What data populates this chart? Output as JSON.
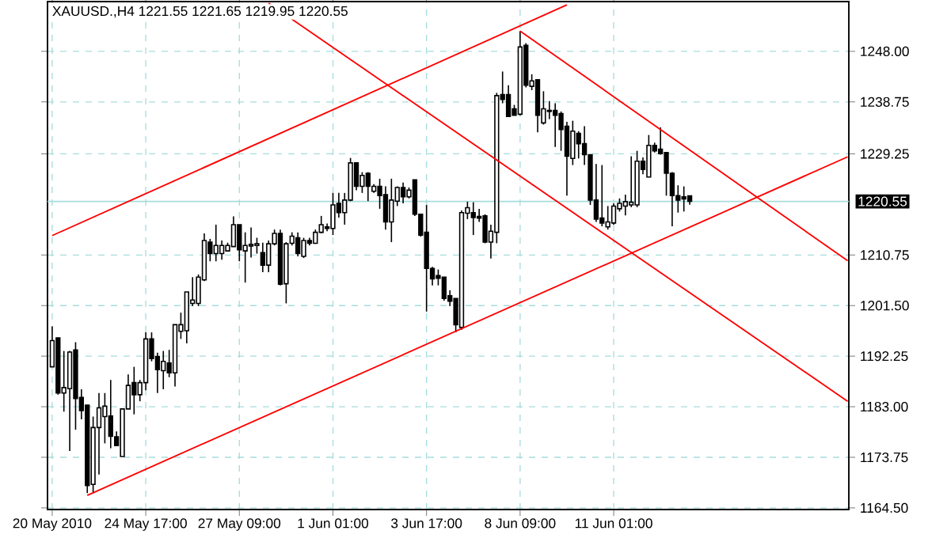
{
  "chart_data": {
    "type": "candlestick",
    "title": "XAUUSD.,H4  1221.55 1221.65 1219.95 1220.55",
    "categories": [
      "20 May 2010",
      null,
      null,
      null,
      null,
      null,
      null,
      null,
      null,
      null,
      null,
      null,
      null,
      null,
      null,
      null,
      "24 May 17:00",
      null,
      null,
      null,
      null,
      null,
      null,
      null,
      null,
      null,
      null,
      null,
      null,
      null,
      null,
      null,
      "27 May 09:00",
      null,
      null,
      null,
      null,
      null,
      null,
      null,
      null,
      null,
      null,
      null,
      null,
      null,
      null,
      null,
      "1 Jun 01:00",
      null,
      null,
      null,
      null,
      null,
      null,
      null,
      null,
      null,
      null,
      null,
      null,
      null,
      null,
      null,
      "3 Jun 17:00",
      null,
      null,
      null,
      null,
      null,
      null,
      null,
      null,
      null,
      null,
      null,
      null,
      null,
      null,
      null,
      "8 Jun 09:00",
      null,
      null,
      null,
      null,
      null,
      null,
      null,
      null,
      null,
      null,
      null,
      null,
      null,
      null,
      null,
      "11 Jun 01:00",
      null,
      null,
      null,
      null,
      null,
      null,
      null,
      null,
      null,
      null,
      null,
      null,
      null,
      null,
      null,
      null,
      null,
      null,
      null,
      null,
      null,
      null,
      null,
      null,
      null,
      null,
      null,
      null,
      null,
      null,
      null,
      null,
      null,
      null,
      null,
      null,
      null,
      null,
      null,
      null
    ],
    "ohlc": [
      [
        1190.3,
        1197.7,
        1190.3,
        1195.1
      ],
      [
        1195.6,
        1195.6,
        1185.2,
        1185.5
      ],
      [
        1185.5,
        1193.2,
        1182.1,
        1186.5
      ],
      [
        1186.3,
        1193.2,
        1174.9,
        1193.0
      ],
      [
        1193.4,
        1194.8,
        1178.8,
        1184.5
      ],
      [
        1184.7,
        1186.2,
        1180.7,
        1182.3
      ],
      [
        1183.3,
        1183.3,
        1167.2,
        1168.6
      ],
      [
        1168.8,
        1181.2,
        1167.2,
        1179.2
      ],
      [
        1179.2,
        1185.5,
        1170.6,
        1182.8
      ],
      [
        1181.2,
        1185.5,
        1176.3,
        1183.1
      ],
      [
        1181.3,
        1187.9,
        1175.4,
        1177.6
      ],
      [
        1177.5,
        1178.5,
        1175.9,
        1175.9
      ],
      [
        1173.9,
        1182.6,
        1173.9,
        1182.6
      ],
      [
        1182.6,
        1188.9,
        1182.6,
        1186.9
      ],
      [
        1187.4,
        1190.3,
        1181.6,
        1185.2
      ],
      [
        1185.2,
        1187.9,
        1184.0,
        1187.4
      ],
      [
        1187.4,
        1196.6,
        1186.0,
        1195.4
      ],
      [
        1195.4,
        1196.6,
        1191.3,
        1191.8
      ],
      [
        1192.2,
        1192.9,
        1185.5,
        1189.8
      ],
      [
        1189.6,
        1193.2,
        1186.2,
        1191.3
      ],
      [
        1191.0,
        1193.4,
        1188.4,
        1189.2
      ],
      [
        1189.2,
        1198.0,
        1186.7,
        1198.0
      ],
      [
        1196.8,
        1200.2,
        1195.4,
        1198.0
      ],
      [
        1196.9,
        1204.0,
        1194.6,
        1204.0
      ],
      [
        1201.9,
        1206.7,
        1201.4,
        1202.5
      ],
      [
        1201.9,
        1207.2,
        1201.4,
        1206.7
      ],
      [
        1206.2,
        1214.7,
        1206.0,
        1213.4
      ],
      [
        1213.1,
        1213.7,
        1209.6,
        1211.0
      ],
      [
        1211.0,
        1216.3,
        1209.6,
        1212.5
      ],
      [
        1211.0,
        1213.4,
        1209.9,
        1212.5
      ],
      [
        1211.5,
        1213.0,
        1211.5,
        1212.5
      ],
      [
        1212.3,
        1217.8,
        1212.3,
        1216.3
      ],
      [
        1216.3,
        1216.3,
        1209.6,
        1211.7
      ],
      [
        1211.5,
        1214.9,
        1205.7,
        1212.5
      ],
      [
        1212.4,
        1215.8,
        1210.3,
        1212.7
      ],
      [
        1212.5,
        1213.9,
        1211.0,
        1212.8
      ],
      [
        1211.2,
        1213.0,
        1207.6,
        1208.9
      ],
      [
        1208.9,
        1213.4,
        1207.6,
        1212.8
      ],
      [
        1212.8,
        1215.4,
        1212.5,
        1214.7
      ],
      [
        1214.7,
        1215.4,
        1205.2,
        1205.4
      ],
      [
        1205.5,
        1213.1,
        1201.9,
        1212.8
      ],
      [
        1212.9,
        1214.9,
        1212.5,
        1214.2
      ],
      [
        1213.9,
        1214.9,
        1210.5,
        1211.0
      ],
      [
        1210.5,
        1213.9,
        1210.2,
        1213.4
      ],
      [
        1213.4,
        1213.9,
        1212.5,
        1212.9
      ],
      [
        1212.9,
        1215.4,
        1212.8,
        1214.9
      ],
      [
        1214.9,
        1217.9,
        1214.7,
        1216.3
      ],
      [
        1215.9,
        1216.5,
        1215.1,
        1215.6
      ],
      [
        1215.6,
        1222.1,
        1214.4,
        1219.9
      ],
      [
        1220.2,
        1222.1,
        1217.6,
        1218.5
      ],
      [
        1218.5,
        1222.1,
        1216.3,
        1220.8
      ],
      [
        1220.8,
        1228.5,
        1220.6,
        1227.6
      ],
      [
        1227.6,
        1227.6,
        1222.6,
        1223.3
      ],
      [
        1223.3,
        1225.9,
        1222.1,
        1225.3
      ],
      [
        1225.7,
        1225.9,
        1220.6,
        1223.3
      ],
      [
        1222.4,
        1223.7,
        1222.1,
        1223.3
      ],
      [
        1223.3,
        1224.7,
        1219.2,
        1221.6
      ],
      [
        1221.8,
        1223.3,
        1215.4,
        1216.8
      ],
      [
        1216.8,
        1224.7,
        1213.1,
        1220.8
      ],
      [
        1220.6,
        1223.3,
        1219.7,
        1223.1
      ],
      [
        1223.1,
        1224.0,
        1220.2,
        1221.4
      ],
      [
        1221.4,
        1223.1,
        1221.1,
        1222.6
      ],
      [
        1224.5,
        1224.5,
        1217.9,
        1218.2
      ],
      [
        1218.2,
        1218.2,
        1214.1,
        1214.4
      ],
      [
        1214.9,
        1219.9,
        1200.4,
        1208.3
      ],
      [
        1208.3,
        1208.6,
        1205.2,
        1206.4
      ],
      [
        1207.0,
        1208.1,
        1205.2,
        1206.5
      ],
      [
        1206.7,
        1206.7,
        1202.4,
        1202.8
      ],
      [
        1203.3,
        1204.3,
        1201.4,
        1202.3
      ],
      [
        1202.8,
        1202.8,
        1196.6,
        1198.0
      ],
      [
        1197.5,
        1218.9,
        1197.1,
        1218.5
      ],
      [
        1218.4,
        1220.5,
        1217.3,
        1219.4
      ],
      [
        1218.5,
        1220.4,
        1214.4,
        1217.6
      ],
      [
        1217.8,
        1219.2,
        1216.8,
        1217.5
      ],
      [
        1217.9,
        1218.2,
        1212.9,
        1213.1
      ],
      [
        1213.1,
        1216.3,
        1210.1,
        1215.1
      ],
      [
        1214.9,
        1240.4,
        1212.9,
        1239.9
      ],
      [
        1240.1,
        1244.3,
        1238.5,
        1239.2
      ],
      [
        1240.1,
        1241.8,
        1236.1,
        1236.1
      ],
      [
        1237.5,
        1238.2,
        1236.3,
        1236.3
      ],
      [
        1236.5,
        1251.7,
        1236.3,
        1248.8
      ],
      [
        1249.1,
        1249.5,
        1241.4,
        1241.8
      ],
      [
        1241.6,
        1243.8,
        1240.9,
        1242.6
      ],
      [
        1242.8,
        1242.8,
        1233.2,
        1236.3
      ],
      [
        1234.9,
        1240.7,
        1234.6,
        1237.5
      ],
      [
        1237.2,
        1238.9,
        1235.6,
        1237.0
      ],
      [
        1237.2,
        1238.5,
        1230.5,
        1236.3
      ],
      [
        1236.6,
        1237.0,
        1229.8,
        1233.7
      ],
      [
        1234.3,
        1235.1,
        1221.6,
        1228.8
      ],
      [
        1228.4,
        1235.3,
        1227.2,
        1233.4
      ],
      [
        1233.0,
        1233.4,
        1228.4,
        1231.1
      ],
      [
        1231.1,
        1234.3,
        1227.2,
        1229.1
      ],
      [
        1229.1,
        1229.1,
        1219.9,
        1220.8
      ],
      [
        1220.8,
        1227.4,
        1216.8,
        1217.3
      ],
      [
        1217.5,
        1227.2,
        1216.0,
        1216.6
      ],
      [
        1215.9,
        1219.7,
        1215.4,
        1216.8
      ],
      [
        1216.6,
        1220.2,
        1216.3,
        1219.7
      ],
      [
        1219.2,
        1221.1,
        1218.7,
        1220.2
      ],
      [
        1219.7,
        1221.8,
        1218.0,
        1220.5
      ],
      [
        1219.9,
        1228.8,
        1219.5,
        1220.4
      ],
      [
        1219.9,
        1229.8,
        1219.5,
        1227.9
      ],
      [
        1227.9,
        1228.6,
        1225.5,
        1226.4
      ],
      [
        1225.0,
        1232.7,
        1225.0,
        1230.8
      ],
      [
        1230.8,
        1231.3,
        1229.5,
        1229.8
      ],
      [
        1230.1,
        1234.1,
        1229.1,
        1229.3
      ],
      [
        1229.5,
        1229.5,
        1221.6,
        1225.7
      ],
      [
        1225.7,
        1225.9,
        1216.0,
        1221.6
      ],
      [
        1221.6,
        1223.5,
        1218.5,
        1220.8
      ],
      [
        1221.4,
        1223.3,
        1218.7,
        1221.0
      ],
      [
        1221.55,
        1221.65,
        1219.95,
        1220.55
      ],
      null,
      null,
      null,
      null,
      null,
      null,
      null,
      null,
      null,
      null,
      null,
      null,
      null,
      null,
      null,
      null,
      null,
      null,
      null,
      null,
      null,
      null,
      null,
      null,
      null,
      null,
      null
    ],
    "series": [
      {
        "type": "line",
        "color": "#ff0000",
        "values": [
          1214.3,
          null,
          null,
          null,
          null,
          null,
          null,
          null,
          null,
          null,
          null,
          null,
          null,
          null,
          null,
          null,
          null,
          null,
          null,
          null,
          null,
          null,
          null,
          null,
          null,
          null,
          null,
          null,
          null,
          null,
          null,
          null,
          null,
          null,
          null,
          null,
          null,
          null,
          null,
          null,
          null,
          null,
          null,
          null,
          null,
          null,
          null,
          null,
          null,
          null,
          null,
          null,
          null,
          null,
          null,
          null,
          null,
          null,
          null,
          null,
          null,
          null,
          null,
          null,
          null,
          null,
          null,
          null,
          null,
          null,
          null,
          null,
          null,
          null,
          null,
          null,
          null,
          null,
          null,
          null,
          null,
          null,
          null,
          null,
          null,
          null,
          null,
          null,
          1256.5,
          null,
          null,
          null,
          null,
          null,
          null,
          null,
          null,
          null,
          null,
          null,
          null,
          null,
          null,
          null,
          null,
          null,
          null,
          null,
          null,
          null,
          null,
          null,
          null,
          null,
          null,
          null,
          null,
          null,
          null,
          null,
          null,
          null,
          null,
          null,
          null,
          null,
          null,
          null,
          null,
          null,
          null,
          null,
          null,
          null,
          null,
          null,
          null
        ]
      },
      {
        "type": "line",
        "color": "#ff0000",
        "values": [
          null,
          null,
          null,
          null,
          null,
          null,
          1166.8,
          null,
          null,
          null,
          null,
          null,
          null,
          null,
          null,
          null,
          null,
          null,
          null,
          null,
          null,
          null,
          null,
          null,
          null,
          null,
          null,
          null,
          null,
          null,
          null,
          null,
          null,
          null,
          null,
          null,
          null,
          null,
          null,
          null,
          null,
          null,
          null,
          null,
          null,
          null,
          null,
          null,
          null,
          null,
          null,
          null,
          null,
          null,
          null,
          null,
          null,
          null,
          null,
          null,
          null,
          null,
          null,
          null,
          null,
          null,
          null,
          null,
          null,
          null,
          null,
          null,
          null,
          null,
          null,
          null,
          null,
          null,
          null,
          null,
          null,
          null,
          null,
          null,
          null,
          null,
          null,
          null,
          null,
          null,
          null,
          null,
          null,
          null,
          null,
          null,
          null,
          null,
          null,
          null,
          null,
          null,
          null,
          null,
          null,
          null,
          null,
          null,
          null,
          null,
          null,
          null,
          null,
          null,
          null,
          null,
          null,
          null,
          null,
          null,
          null,
          null,
          null,
          null,
          null,
          null,
          null,
          null,
          null,
          null,
          null,
          null,
          null,
          null,
          null,
          null,
          1228.7
        ]
      },
      {
        "type": "line",
        "color": "#ff0000",
        "values": [
          null,
          null,
          null,
          null,
          null,
          null,
          null,
          null,
          null,
          null,
          null,
          null,
          null,
          null,
          null,
          null,
          null,
          null,
          null,
          null,
          null,
          null,
          null,
          null,
          null,
          null,
          null,
          null,
          null,
          null,
          null,
          null,
          null,
          null,
          null,
          null,
          null,
          null,
          null,
          null,
          null,
          null,
          null,
          null,
          null,
          null,
          null,
          null,
          null,
          null,
          null,
          null,
          null,
          null,
          null,
          null,
          null,
          null,
          null,
          null,
          null,
          null,
          null,
          null,
          null,
          null,
          null,
          null,
          null,
          null,
          null,
          null,
          null,
          null,
          null,
          null,
          null,
          null,
          null,
          null,
          1251.7,
          null,
          null,
          null,
          null,
          null,
          null,
          null,
          null,
          null,
          null,
          null,
          null,
          null,
          null,
          null,
          null,
          null,
          null,
          null,
          null,
          null,
          null,
          null,
          null,
          null,
          null,
          null,
          null,
          null,
          null,
          null,
          null,
          null,
          null,
          null,
          null,
          null,
          null,
          null,
          null,
          null,
          null,
          null,
          null,
          null,
          null,
          null,
          null,
          null,
          null,
          null,
          null,
          null,
          null,
          null,
          1209.7
        ]
      },
      {
        "type": "line",
        "color": "#ff0000",
        "values": [
          null,
          null,
          null,
          null,
          null,
          null,
          null,
          null,
          null,
          null,
          null,
          null,
          null,
          null,
          null,
          null,
          null,
          null,
          null,
          null,
          null,
          null,
          null,
          null,
          null,
          null,
          null,
          null,
          null,
          null,
          null,
          null,
          null,
          null,
          null,
          null,
          null,
          1256.8,
          null,
          null,
          null,
          null,
          null,
          null,
          null,
          null,
          null,
          null,
          null,
          null,
          null,
          null,
          null,
          null,
          null,
          null,
          null,
          null,
          null,
          null,
          null,
          null,
          null,
          null,
          null,
          null,
          null,
          null,
          null,
          null,
          null,
          null,
          null,
          null,
          null,
          null,
          null,
          null,
          null,
          null,
          null,
          null,
          null,
          null,
          null,
          null,
          null,
          null,
          null,
          null,
          null,
          null,
          null,
          null,
          null,
          null,
          null,
          null,
          null,
          null,
          null,
          null,
          null,
          null,
          null,
          null,
          null,
          null,
          null,
          null,
          null,
          null,
          null,
          null,
          null,
          null,
          null,
          null,
          null,
          null,
          null,
          null,
          null,
          null,
          null,
          null,
          null,
          null,
          null,
          null,
          null,
          null,
          null,
          null,
          null,
          null,
          1184.0
        ]
      }
    ],
    "ylim": [
      1164.2,
      1257.1
    ],
    "yticks": [
      {
        "value": 1164.5,
        "label": "1164.50"
      },
      1173.75,
      {
        "value": 1183,
        "label": "1183.00"
      },
      1192.25,
      {
        "value": 1201.5,
        "label": "1201.50"
      },
      1210.75,
      1229.25,
      1238.75,
      {
        "value": 1248,
        "label": "1248.00"
      }
    ],
    "ref_lines": [
      {
        "axis": "y",
        "value": 1220.55,
        "label": "1220.55",
        "color": "#a8dcdc"
      }
    ],
    "grid": true
  }
}
